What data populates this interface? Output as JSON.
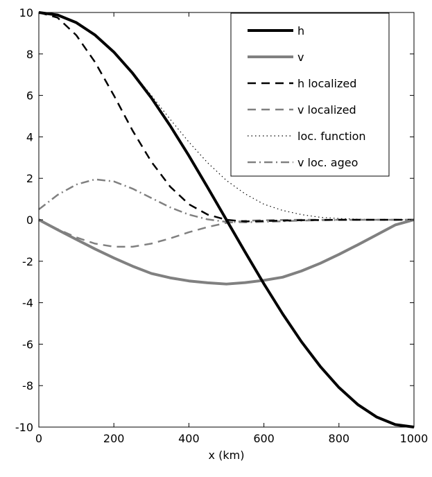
{
  "chart_data": {
    "type": "line",
    "title": "",
    "xlabel": "x (km)",
    "ylabel": "",
    "xlim": [
      0,
      1000
    ],
    "ylim": [
      -10,
      10
    ],
    "grid": false,
    "legend_position": "top-right",
    "x_ticks": [
      0,
      200,
      400,
      600,
      800,
      1000
    ],
    "y_ticks": [
      -10,
      -8,
      -6,
      -4,
      -2,
      0,
      2,
      4,
      6,
      8,
      10
    ],
    "x": [
      0,
      50,
      100,
      150,
      200,
      250,
      300,
      350,
      400,
      450,
      500,
      550,
      600,
      650,
      700,
      750,
      800,
      850,
      900,
      950,
      1000
    ],
    "series": [
      {
        "name": "h",
        "color": "#000000",
        "style": "solid-thick",
        "values": [
          10,
          9.88,
          9.51,
          8.91,
          8.09,
          7.07,
          5.88,
          4.54,
          3.09,
          1.56,
          0,
          -1.56,
          -3.09,
          -4.54,
          -5.88,
          -7.07,
          -8.09,
          -8.91,
          -9.51,
          -9.88,
          -10
        ]
      },
      {
        "name": "v",
        "color": "#808080",
        "style": "solid-thick",
        "values": [
          0,
          -0.48,
          -0.95,
          -1.41,
          -1.84,
          -2.24,
          -2.59,
          -2.8,
          -2.95,
          -3.04,
          -3.1,
          -3.03,
          -2.92,
          -2.77,
          -2.47,
          -2.1,
          -1.67,
          -1.21,
          -0.73,
          -0.25,
          0
        ]
      },
      {
        "name": "h localized",
        "color": "#000000",
        "style": "dashed",
        "values": [
          10,
          9.75,
          8.9,
          7.6,
          6.0,
          4.3,
          2.8,
          1.6,
          0.75,
          0.25,
          0,
          -0.08,
          -0.06,
          -0.04,
          -0.02,
          -0.01,
          0,
          0,
          0,
          0,
          0
        ]
      },
      {
        "name": "v localized",
        "color": "#808080",
        "style": "dashed",
        "values": [
          0,
          -0.45,
          -0.85,
          -1.15,
          -1.3,
          -1.3,
          -1.15,
          -0.9,
          -0.6,
          -0.35,
          -0.15,
          -0.05,
          -0.02,
          -0.01,
          0,
          0,
          0,
          0,
          0,
          0,
          0
        ]
      },
      {
        "name": "loc. function",
        "color": "#000000",
        "style": "dotted",
        "values": [
          10,
          9.9,
          9.5,
          8.9,
          8.1,
          7.1,
          6.0,
          4.85,
          3.75,
          2.75,
          1.9,
          1.25,
          0.75,
          0.45,
          0.25,
          0.12,
          0.06,
          0.03,
          0.01,
          0,
          0
        ]
      },
      {
        "name": "v loc. ageo",
        "color": "#808080",
        "style": "dashdot",
        "values": [
          0.5,
          1.2,
          1.7,
          1.95,
          1.85,
          1.5,
          1.05,
          0.6,
          0.25,
          0.02,
          -0.1,
          -0.12,
          -0.1,
          -0.07,
          -0.04,
          -0.02,
          -0.01,
          0,
          0,
          0,
          0
        ]
      }
    ]
  }
}
